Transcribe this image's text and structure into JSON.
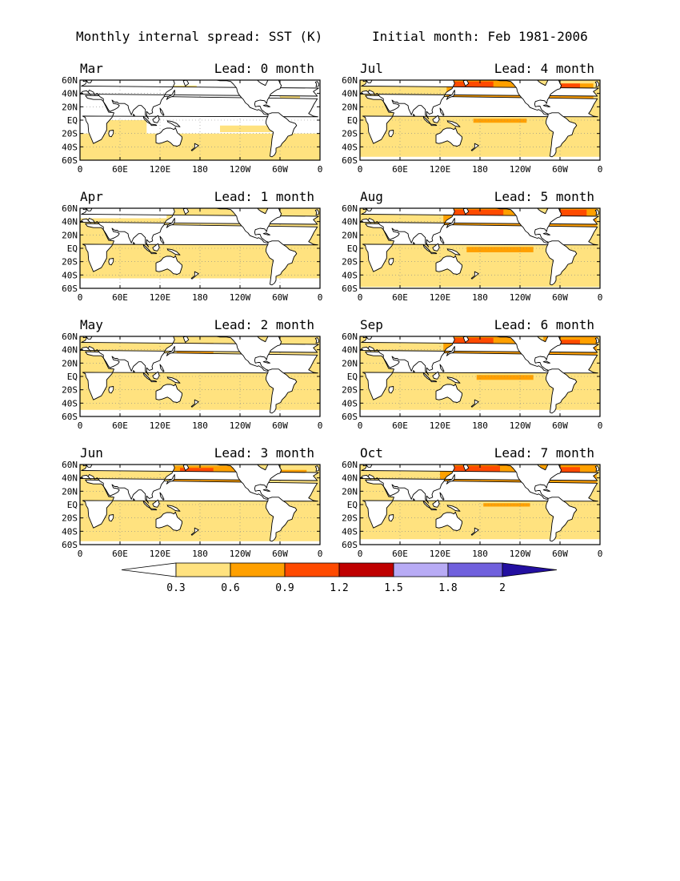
{
  "header": {
    "title": "Monthly internal spread: SST (K)",
    "initial": "Initial month: Feb 1981-2006"
  },
  "panels": [
    {
      "month": "Mar",
      "lead": "Lead: 0 month",
      "lon_labels": [
        "0",
        "60E",
        "120E",
        "180",
        "120W",
        "60W",
        "0"
      ]
    },
    {
      "month": "Apr",
      "lead": "Lead: 1 month",
      "lon_labels": [
        "0",
        "60E",
        "120E",
        "180",
        "120W",
        "60W",
        "0"
      ]
    },
    {
      "month": "May",
      "lead": "Lead: 2 month",
      "lon_labels": [
        "0",
        "60E",
        "120E",
        "180",
        "120W",
        "60W",
        "0"
      ]
    },
    {
      "month": "Jun",
      "lead": "Lead: 3 month",
      "lon_labels": [
        "0",
        "60E",
        "120E",
        "180",
        "120W",
        "60W",
        "0"
      ]
    },
    {
      "month": "Jul",
      "lead": "Lead: 4 month",
      "lon_labels": [
        "0",
        "60E",
        "120E",
        "180",
        "120W",
        "60W",
        "0"
      ]
    },
    {
      "month": "Aug",
      "lead": "Lead: 5 month",
      "lon_labels": [
        "0",
        "60E",
        "120E",
        "180",
        "120W",
        "60W",
        "0"
      ]
    },
    {
      "month": "Sep",
      "lead": "Lead: 6 month",
      "lon_labels": [
        "0",
        "60E",
        "120E",
        "180",
        "120W",
        "60W",
        "0"
      ]
    },
    {
      "month": "Oct",
      "lead": "Lead: 7 month",
      "lon_labels": [
        "0",
        "60E",
        "120E",
        "180",
        "120W",
        "60W",
        "0"
      ]
    }
  ],
  "lat_labels": [
    "60N",
    "40N",
    "20N",
    "EQ",
    "20S",
    "40S",
    "60S"
  ],
  "colorbar": {
    "ticks": [
      "0.3",
      "0.6",
      "0.9",
      "1.2",
      "1.5",
      "1.8",
      "2"
    ],
    "colors": [
      "#ffffff",
      "#ffe27f",
      "#ffa000",
      "#ff4a00",
      "#bf0000",
      "#b8abf5",
      "#7060dd",
      "#230fa0"
    ]
  },
  "palette": {
    "land": "#ffffff",
    "coast": "#000000",
    "low": "#ffe27f",
    "mid": "#ffa000",
    "high": "#ff4a00",
    "dark": "#bf0000"
  }
}
